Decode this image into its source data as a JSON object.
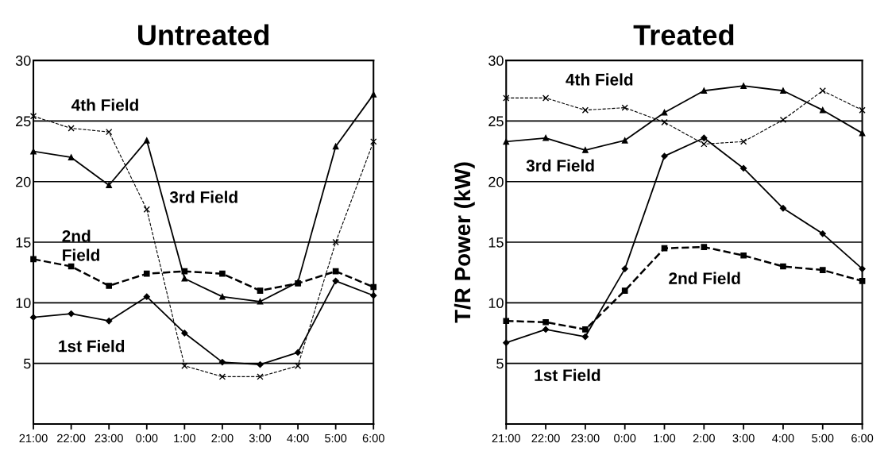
{
  "chart_data": [
    {
      "type": "line",
      "title": "Untreated",
      "categories": [
        "21:00",
        "22:00",
        "23:00",
        "0:00",
        "1:00",
        "2:00",
        "3:00",
        "4:00",
        "5:00",
        "6:00"
      ],
      "ylim": [
        0,
        30
      ],
      "yticks": [
        5,
        10,
        15,
        20,
        25,
        30
      ],
      "grid": "y",
      "legend": false,
      "series": [
        {
          "name": "1st Field",
          "color": "#000000",
          "marker": "diamond",
          "line_style": "solid",
          "values": [
            8.8,
            9.1,
            8.5,
            10.5,
            7.5,
            5.1,
            4.9,
            5.9,
            11.8,
            10.6
          ]
        },
        {
          "name": "2nd Field",
          "color": "#000000",
          "marker": "square",
          "line_style": "dashed",
          "values": [
            13.6,
            13.0,
            11.4,
            12.4,
            12.6,
            12.4,
            11.0,
            11.6,
            12.6,
            11.3
          ]
        },
        {
          "name": "3rd Field",
          "color": "#000000",
          "marker": "triangle",
          "line_style": "solid",
          "values": [
            22.5,
            22.0,
            19.7,
            23.4,
            12.0,
            10.5,
            10.1,
            11.7,
            22.9,
            27.2
          ]
        },
        {
          "name": "4th Field",
          "color": "#000000",
          "marker": "cross",
          "line_style": "dashed",
          "values": [
            25.4,
            24.4,
            24.1,
            17.7,
            4.8,
            3.9,
            3.9,
            4.8,
            15.0,
            23.3
          ]
        }
      ]
    },
    {
      "type": "line",
      "title": "Treated",
      "ylabel": "T/R Power (kW)",
      "categories": [
        "21:00",
        "22:00",
        "23:00",
        "0:00",
        "1:00",
        "2:00",
        "3:00",
        "4:00",
        "5:00",
        "6:00"
      ],
      "ylim": [
        0,
        30
      ],
      "yticks": [
        5,
        10,
        15,
        20,
        25,
        30
      ],
      "grid": "y",
      "legend": false,
      "series": [
        {
          "name": "1st Field",
          "color": "#000000",
          "marker": "diamond",
          "line_style": "solid",
          "values": [
            6.7,
            7.8,
            7.2,
            12.8,
            22.1,
            23.6,
            21.1,
            17.8,
            15.7,
            12.8
          ]
        },
        {
          "name": "2nd Field",
          "color": "#000000",
          "marker": "square",
          "line_style": "dashed",
          "values": [
            8.5,
            8.4,
            7.8,
            11.0,
            14.5,
            14.6,
            13.9,
            13.0,
            12.7,
            11.8
          ]
        },
        {
          "name": "3rd Field",
          "color": "#000000",
          "marker": "triangle",
          "line_style": "solid",
          "values": [
            23.3,
            23.6,
            22.6,
            23.4,
            25.7,
            27.5,
            27.9,
            27.5,
            25.9,
            24.0
          ]
        },
        {
          "name": "4th Field",
          "color": "#000000",
          "marker": "cross",
          "line_style": "dashed",
          "values": [
            26.9,
            26.9,
            25.9,
            26.1,
            24.9,
            23.1,
            23.3,
            25.1,
            27.5,
            25.9
          ]
        }
      ]
    }
  ]
}
